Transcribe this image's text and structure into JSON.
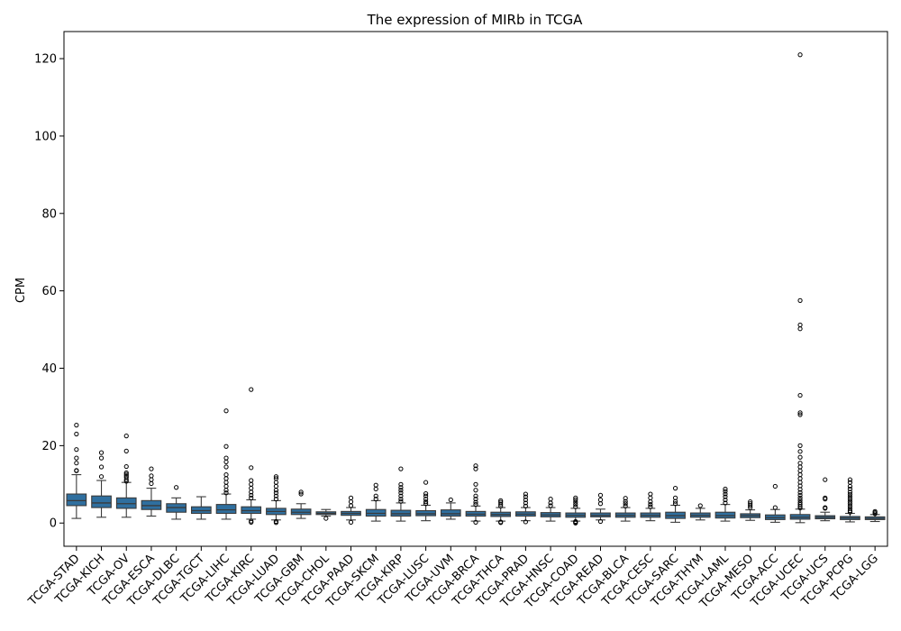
{
  "chart_data": {
    "type": "box",
    "title": "The expression of MIRb in TCGA",
    "xlabel": "",
    "ylabel": "CPM",
    "ylim": [
      -6,
      127
    ],
    "yticks": [
      0,
      20,
      40,
      60,
      80,
      100,
      120
    ],
    "box_color": "#2f6f9f",
    "categories": [
      "TCGA-STAD",
      "TCGA-KICH",
      "TCGA-OV",
      "TCGA-ESCA",
      "TCGA-DLBC",
      "TCGA-TGCT",
      "TCGA-LIHC",
      "TCGA-KIRC",
      "TCGA-LUAD",
      "TCGA-GBM",
      "TCGA-CHOL",
      "TCGA-PAAD",
      "TCGA-SKCM",
      "TCGA-KIRP",
      "TCGA-LUSC",
      "TCGA-UVM",
      "TCGA-BRCA",
      "TCGA-THCA",
      "TCGA-PRAD",
      "TCGA-HNSC",
      "TCGA-COAD",
      "TCGA-READ",
      "TCGA-BLCA",
      "TCGA-CESC",
      "TCGA-SARC",
      "TCGA-THYM",
      "TCGA-LAML",
      "TCGA-MESO",
      "TCGA-ACC",
      "TCGA-UCEC",
      "TCGA-UCS",
      "TCGA-PCPG",
      "TCGA-LGG"
    ],
    "boxes": [
      {
        "whisker_low": 1.2,
        "q1": 4.5,
        "median": 5.8,
        "q3": 7.5,
        "whisker_high": 12.5,
        "outliers": [
          13.5,
          13.6,
          15.5,
          16.8,
          19.0,
          23.0,
          25.3
        ]
      },
      {
        "whisker_low": 1.5,
        "q1": 4.0,
        "median": 5.2,
        "q3": 7.0,
        "whisker_high": 11.0,
        "outliers": [
          12.0,
          14.5,
          16.8,
          18.2
        ]
      },
      {
        "whisker_low": 1.5,
        "q1": 3.8,
        "median": 5.0,
        "q3": 6.5,
        "whisker_high": 10.5,
        "outliers": [
          10.8,
          11.2,
          11.8,
          12.2,
          12.6,
          13.0,
          14.6,
          18.6,
          22.5
        ]
      },
      {
        "whisker_low": 1.8,
        "q1": 3.5,
        "median": 4.5,
        "q3": 5.8,
        "whisker_high": 9.0,
        "outliers": [
          10.2,
          11.2,
          12.2,
          14.0
        ]
      },
      {
        "whisker_low": 1.0,
        "q1": 2.8,
        "median": 4.0,
        "q3": 5.0,
        "whisker_high": 6.5,
        "outliers": [
          9.2
        ]
      },
      {
        "whisker_low": 1.0,
        "q1": 2.5,
        "median": 3.2,
        "q3": 4.2,
        "whisker_high": 6.8,
        "outliers": []
      },
      {
        "whisker_low": 1.0,
        "q1": 2.5,
        "median": 3.4,
        "q3": 4.8,
        "whisker_high": 7.5,
        "outliers": [
          7.8,
          8.5,
          9.5,
          10.5,
          11.5,
          12.5,
          14.5,
          15.8,
          16.8,
          19.8,
          29.0
        ]
      },
      {
        "whisker_low": 1.0,
        "q1": 2.5,
        "median": 3.2,
        "q3": 4.2,
        "whisker_high": 6.0,
        "outliers": [
          0.2,
          0.5,
          6.5,
          7.2,
          8.0,
          9.0,
          10.0,
          11.0,
          14.3,
          34.5
        ]
      },
      {
        "whisker_low": 0.8,
        "q1": 2.2,
        "median": 3.0,
        "q3": 3.8,
        "whisker_high": 5.8,
        "outliers": [
          0.1,
          0.4,
          6.2,
          7.0,
          7.8,
          8.5,
          9.5,
          10.5,
          11.5,
          12.0
        ]
      },
      {
        "whisker_low": 1.2,
        "q1": 2.2,
        "median": 2.8,
        "q3": 3.6,
        "whisker_high": 5.0,
        "outliers": [
          7.5,
          8.0
        ]
      },
      {
        "whisker_low": 1.8,
        "q1": 2.2,
        "median": 2.5,
        "q3": 2.9,
        "whisker_high": 3.5,
        "outliers": [
          1.2
        ]
      },
      {
        "whisker_low": 0.8,
        "q1": 2.0,
        "median": 2.5,
        "q3": 3.0,
        "whisker_high": 4.0,
        "outliers": [
          0.2,
          4.5,
          5.5,
          6.5
        ]
      },
      {
        "whisker_low": 0.5,
        "q1": 1.8,
        "median": 2.5,
        "q3": 3.5,
        "whisker_high": 5.8,
        "outliers": [
          6.2,
          7.0,
          8.8,
          9.8
        ]
      },
      {
        "whisker_low": 0.5,
        "q1": 1.8,
        "median": 2.4,
        "q3": 3.3,
        "whisker_high": 5.2,
        "outliers": [
          5.6,
          6.2,
          7.0,
          7.8,
          8.5,
          9.2,
          10.0,
          14.0
        ]
      },
      {
        "whisker_low": 0.6,
        "q1": 1.9,
        "median": 2.4,
        "q3": 3.2,
        "whisker_high": 4.6,
        "outliers": [
          5.0,
          5.5,
          6.2,
          7.0,
          7.6,
          10.5
        ]
      },
      {
        "whisker_low": 1.0,
        "q1": 1.8,
        "median": 2.4,
        "q3": 3.4,
        "whisker_high": 5.2,
        "outliers": [
          6.0
        ]
      },
      {
        "whisker_low": 0.5,
        "q1": 1.8,
        "median": 2.3,
        "q3": 3.0,
        "whisker_high": 4.4,
        "outliers": [
          0.2,
          4.8,
          5.4,
          6.2,
          7.0,
          8.5,
          10.0,
          14.0,
          14.8
        ]
      },
      {
        "whisker_low": 0.5,
        "q1": 1.7,
        "median": 2.2,
        "q3": 2.8,
        "whisker_high": 4.0,
        "outliers": [
          0.1,
          0.3,
          4.4,
          4.9,
          5.4,
          5.8
        ]
      },
      {
        "whisker_low": 0.6,
        "q1": 1.8,
        "median": 2.3,
        "q3": 2.9,
        "whisker_high": 4.0,
        "outliers": [
          0.3,
          4.4,
          5.2,
          6.0,
          6.8,
          7.5
        ]
      },
      {
        "whisker_low": 0.5,
        "q1": 1.6,
        "median": 2.1,
        "q3": 2.7,
        "whisker_high": 4.0,
        "outliers": [
          4.5,
          5.2,
          6.2
        ]
      },
      {
        "whisker_low": 0.5,
        "q1": 1.5,
        "median": 2.0,
        "q3": 2.6,
        "whisker_high": 3.8,
        "outliers": [
          0.0,
          0.2,
          0.4,
          4.2,
          4.8,
          5.4,
          6.0,
          6.5
        ]
      },
      {
        "whisker_low": 0.8,
        "q1": 1.6,
        "median": 2.0,
        "q3": 2.6,
        "whisker_high": 3.6,
        "outliers": [
          0.4,
          5.0,
          6.0,
          7.2
        ]
      },
      {
        "whisker_low": 0.5,
        "q1": 1.5,
        "median": 2.0,
        "q3": 2.6,
        "whisker_high": 4.0,
        "outliers": [
          4.4,
          5.0,
          5.6,
          6.4
        ]
      },
      {
        "whisker_low": 0.6,
        "q1": 1.5,
        "median": 2.0,
        "q3": 2.6,
        "whisker_high": 3.8,
        "outliers": [
          4.2,
          4.8,
          5.5,
          6.5,
          7.5
        ]
      },
      {
        "whisker_low": 0.2,
        "q1": 1.2,
        "median": 1.9,
        "q3": 2.8,
        "whisker_high": 4.6,
        "outliers": [
          5.0,
          5.6,
          6.5,
          9.0
        ]
      },
      {
        "whisker_low": 0.8,
        "q1": 1.5,
        "median": 2.0,
        "q3": 2.6,
        "whisker_high": 3.8,
        "outliers": [
          4.5
        ]
      },
      {
        "whisker_low": 0.5,
        "q1": 1.3,
        "median": 1.9,
        "q3": 2.8,
        "whisker_high": 4.8,
        "outliers": [
          5.2,
          6.0,
          6.8,
          7.5,
          8.2,
          8.8
        ]
      },
      {
        "whisker_low": 0.7,
        "q1": 1.4,
        "median": 1.9,
        "q3": 2.4,
        "whisker_high": 3.4,
        "outliers": [
          4.0,
          4.5,
          5.0,
          5.5
        ]
      },
      {
        "whisker_low": 0.2,
        "q1": 0.9,
        "median": 1.4,
        "q3": 2.1,
        "whisker_high": 3.5,
        "outliers": [
          4.0,
          9.5
        ]
      },
      {
        "whisker_low": 0.1,
        "q1": 1.0,
        "median": 1.5,
        "q3": 2.2,
        "whisker_high": 3.6,
        "outliers": [
          3.9,
          4.3,
          4.8,
          5.3,
          5.9,
          6.5,
          7.2,
          7.9,
          8.7,
          9.6,
          10.5,
          11.5,
          12.5,
          13.5,
          14.5,
          15.5,
          17.0,
          18.5,
          20.0,
          28.0,
          28.5,
          33.0,
          50.2,
          51.2,
          57.5,
          121.0
        ]
      },
      {
        "whisker_low": 0.6,
        "q1": 1.1,
        "median": 1.5,
        "q3": 1.9,
        "whisker_high": 2.8,
        "outliers": [
          3.8,
          4.0,
          6.2,
          6.5,
          11.2
        ]
      },
      {
        "whisker_low": 0.3,
        "q1": 0.9,
        "median": 1.3,
        "q3": 1.7,
        "whisker_high": 2.5,
        "outliers": [
          2.8,
          3.2,
          3.8,
          4.4,
          5.0,
          5.6,
          6.2,
          6.8,
          7.4,
          8.0,
          8.8,
          9.5,
          10.5,
          11.2
        ]
      },
      {
        "whisker_low": 0.4,
        "q1": 0.9,
        "median": 1.2,
        "q3": 1.6,
        "whisker_high": 2.2,
        "outliers": [
          2.4,
          2.7,
          3.0
        ]
      }
    ]
  }
}
